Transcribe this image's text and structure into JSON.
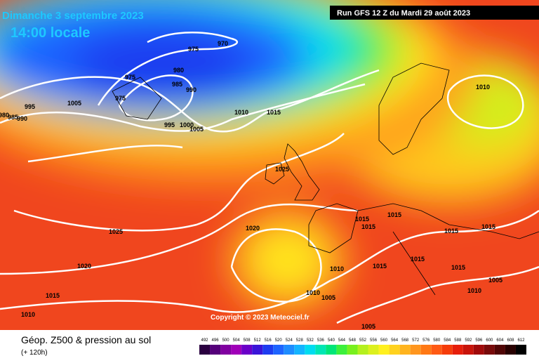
{
  "header": {
    "date": "Dimanche 3 septembre 2023",
    "time": "14:00 locale",
    "run": "Run GFS 12 Z du Mardi 29 août 2023"
  },
  "isobars": {
    "labels": [
      975,
      970,
      975,
      980,
      985,
      990,
      975,
      995,
      1005,
      980,
      985,
      990,
      995,
      1000,
      1005,
      1010,
      1015,
      1010,
      1025,
      1025,
      1020,
      1020,
      1015,
      1010,
      1015,
      1015,
      1015,
      1015,
      1015,
      1010,
      1015,
      1015,
      1015,
      1010,
      1005,
      1010,
      1005,
      1005
    ]
  },
  "copyright": "Copyright © 2023 Meteociel.fr",
  "footer": {
    "title": "Géop. Z500 & pression au sol",
    "subtitle": "(+ 120h)"
  },
  "colorbar": {
    "labels": [
      492,
      496,
      500,
      504,
      508,
      512,
      516,
      520,
      524,
      528,
      532,
      536,
      540,
      544,
      548,
      552,
      556,
      560,
      564,
      568,
      572,
      576,
      580,
      584,
      588,
      592,
      596,
      600,
      604,
      608,
      612
    ],
    "colors": [
      "#2a0040",
      "#55007a",
      "#8000a0",
      "#a000b8",
      "#6a00c8",
      "#3a14d8",
      "#1e3cf0",
      "#1e64ff",
      "#1e8cff",
      "#14b4ff",
      "#00dcf0",
      "#00e6b4",
      "#00e678",
      "#3cf03c",
      "#78f01e",
      "#b4f01e",
      "#dcf01e",
      "#fff01e",
      "#ffd21e",
      "#ffb41e",
      "#ff961e",
      "#ff7814",
      "#ff5a14",
      "#f53c0a",
      "#e61e0a",
      "#c8140a",
      "#a00a0a",
      "#780a0a",
      "#500505",
      "#280000",
      "#000000"
    ]
  }
}
